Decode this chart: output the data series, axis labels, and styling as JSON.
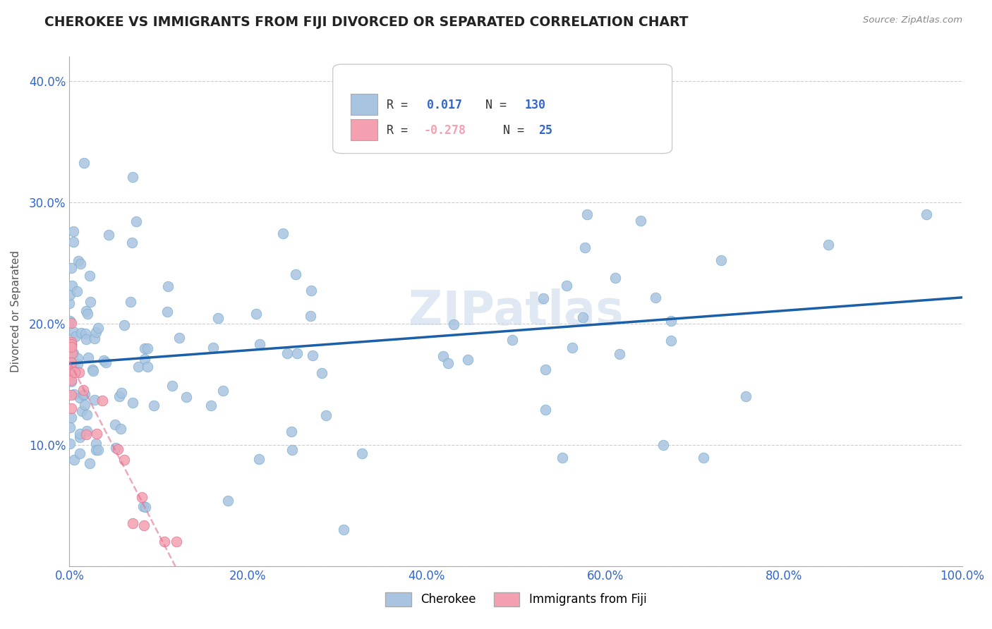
{
  "title": "CHEROKEE VS IMMIGRANTS FROM FIJI DIVORCED OR SEPARATED CORRELATION CHART",
  "source": "Source: ZipAtlas.com",
  "ylabel": "Divorced or Separated",
  "xlim": [
    0.0,
    1.0
  ],
  "ylim": [
    0.0,
    0.42
  ],
  "xticks": [
    0.0,
    0.2,
    0.4,
    0.6,
    0.8,
    1.0
  ],
  "xtick_labels": [
    "0.0%",
    "20.0%",
    "40.0%",
    "60.0%",
    "80.0%",
    "100.0%"
  ],
  "yticks": [
    0.0,
    0.1,
    0.2,
    0.3,
    0.4
  ],
  "ytick_labels": [
    "",
    "10.0%",
    "20.0%",
    "30.0%",
    "40.0%"
  ],
  "grid_color": "#cccccc",
  "background_color": "#ffffff",
  "cherokee_color": "#a8c4e0",
  "cherokee_edge": "#7aafd0",
  "fiji_color": "#f4a0b0",
  "fiji_edge": "#e07090",
  "cherokee_line_color": "#1a5fa8",
  "fiji_line_color": "#e07090",
  "legend_cherokee_label": "Cherokee",
  "legend_fiji_label": "Immigrants from Fiji",
  "watermark": "ZIPatlas",
  "title_color": "#222222",
  "source_color": "#888888",
  "tick_color": "#3366cc",
  "ylabel_color": "#555555"
}
